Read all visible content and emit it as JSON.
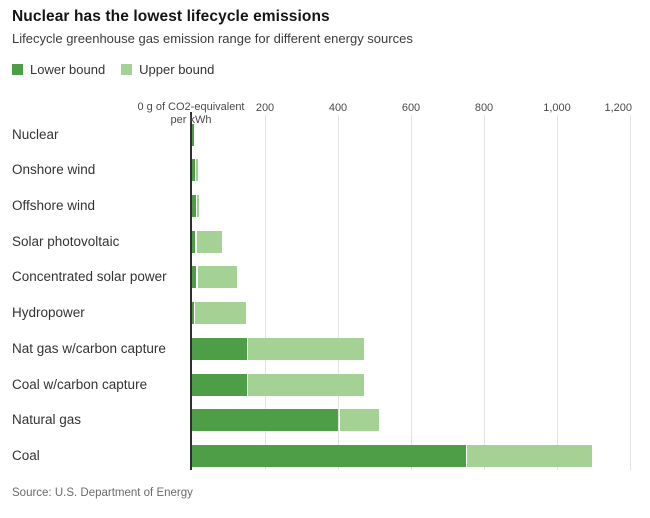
{
  "header": {
    "title": "Nuclear has the lowest lifecycle emissions",
    "subtitle": "Lifecycle greenhouse gas emission range for different energy sources"
  },
  "legend": {
    "items": [
      {
        "label": "Lower bound",
        "color": "#4d9e46"
      },
      {
        "label": "Upper bound",
        "color": "#a4d294"
      }
    ]
  },
  "chart_data": {
    "type": "bar",
    "orientation": "horizontal",
    "title": "Nuclear has the lowest lifecycle emissions",
    "xlabel": "g of CO2-equivalent per kWh",
    "unit_label_lines": [
      "0 g of CO2-equivalent",
      "per kWh"
    ],
    "xlim": [
      0,
      1200
    ],
    "ticks": [
      200,
      400,
      600,
      800,
      1000,
      1200
    ],
    "tick_labels": [
      "200",
      "400",
      "600",
      "800",
      "1,000",
      "1,200"
    ],
    "grid": true,
    "legend_position": "top-left",
    "categories": [
      "Nuclear",
      "Onshore wind",
      "Offshore wind",
      "Solar photovoltaic",
      "Concentrated solar power",
      "Hydropower",
      "Nat gas w/carbon capture",
      "Coal w/carbon capture",
      "Natural gas",
      "Coal"
    ],
    "series": [
      {
        "name": "Lower bound",
        "color": "#4d9e46",
        "values": [
          5,
          8,
          10,
          9,
          12,
          4,
          150,
          150,
          400,
          750
        ]
      },
      {
        "name": "Upper bound",
        "color": "#a4d294",
        "values": [
          6,
          16,
          20,
          81,
          122,
          147,
          470,
          472,
          513,
          1095
        ]
      }
    ]
  },
  "source": "Source: U.S. Department of Energy"
}
